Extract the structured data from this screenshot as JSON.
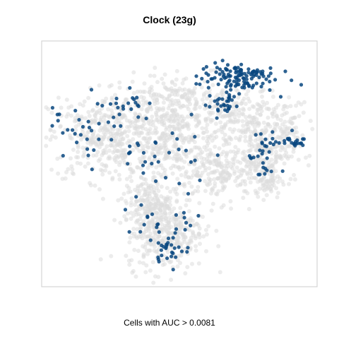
{
  "chart_data": {
    "type": "scatter",
    "title": "Clock (23g)",
    "caption": "Cells with AUC > 0.0081",
    "xlim": [
      0,
      390
    ],
    "ylim": [
      0,
      348
    ],
    "grid": false,
    "colors": {
      "background_cells": "#dddddd",
      "highlighted_cells": "#08467f",
      "frame": "#cccccc"
    },
    "highlighted_regions": [
      {
        "cx": 275,
        "cy": 297,
        "rx": 56,
        "ry": 22,
        "n": 120
      },
      {
        "cx": 257,
        "cy": 258,
        "rx": 22,
        "ry": 18,
        "n": 28
      },
      {
        "cx": 350,
        "cy": 207,
        "rx": 25,
        "ry": 8,
        "n": 22
      },
      {
        "cx": 315,
        "cy": 180,
        "rx": 22,
        "ry": 40,
        "n": 30
      },
      {
        "cx": 112,
        "cy": 260,
        "rx": 40,
        "ry": 18,
        "n": 18
      },
      {
        "cx": 45,
        "cy": 230,
        "rx": 30,
        "ry": 25,
        "n": 18
      },
      {
        "cx": 140,
        "cy": 200,
        "rx": 100,
        "ry": 60,
        "n": 45
      },
      {
        "cx": 175,
        "cy": 90,
        "rx": 60,
        "ry": 50,
        "n": 30
      },
      {
        "cx": 185,
        "cy": 55,
        "rx": 25,
        "ry": 20,
        "n": 22
      }
    ],
    "background_regions": [
      {
        "cx": 195,
        "cy": 260,
        "rx": 110,
        "ry": 40,
        "n": 300
      },
      {
        "cx": 300,
        "cy": 230,
        "rx": 90,
        "ry": 40,
        "n": 250
      },
      {
        "cx": 95,
        "cy": 210,
        "rx": 85,
        "ry": 60,
        "n": 420
      },
      {
        "cx": 185,
        "cy": 200,
        "rx": 60,
        "ry": 55,
        "n": 220
      },
      {
        "cx": 255,
        "cy": 160,
        "rx": 70,
        "ry": 40,
        "n": 220
      },
      {
        "cx": 315,
        "cy": 190,
        "rx": 45,
        "ry": 35,
        "n": 160
      },
      {
        "cx": 320,
        "cy": 150,
        "rx": 20,
        "ry": 25,
        "n": 60
      },
      {
        "cx": 175,
        "cy": 80,
        "rx": 55,
        "ry": 55,
        "n": 380
      },
      {
        "cx": 150,
        "cy": 120,
        "rx": 30,
        "ry": 30,
        "n": 120
      }
    ]
  }
}
